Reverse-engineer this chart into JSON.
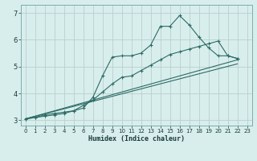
{
  "xlabel": "Humidex (Indice chaleur)",
  "bg_color": "#d8eeed",
  "grid_color": "#b8d0ce",
  "line_color": "#2d6b65",
  "xlim": [
    -0.5,
    23.5
  ],
  "ylim": [
    2.8,
    7.3
  ],
  "xticks": [
    0,
    1,
    2,
    3,
    4,
    5,
    6,
    7,
    8,
    9,
    10,
    11,
    12,
    13,
    14,
    15,
    16,
    17,
    18,
    19,
    20,
    21,
    22,
    23
  ],
  "yticks": [
    3,
    4,
    5,
    6,
    7
  ],
  "series": [
    {
      "x": [
        0,
        1,
        2,
        3,
        4,
        5,
        6,
        7,
        8,
        9,
        10,
        11,
        12,
        13,
        14,
        15,
        16,
        17,
        18,
        19,
        20,
        21,
        22
      ],
      "y": [
        3.05,
        3.1,
        3.2,
        3.25,
        3.3,
        3.35,
        3.45,
        3.85,
        4.65,
        5.35,
        5.4,
        5.4,
        5.5,
        5.8,
        6.5,
        6.5,
        6.9,
        6.55,
        6.1,
        5.7,
        5.4,
        5.4,
        5.3
      ],
      "marker": true
    },
    {
      "x": [
        0,
        1,
        2,
        3,
        4,
        5,
        6,
        7,
        8,
        9,
        10,
        11,
        12,
        13,
        14,
        15,
        16,
        17,
        18,
        19,
        20,
        21,
        22
      ],
      "y": [
        3.05,
        3.1,
        3.15,
        3.2,
        3.25,
        3.35,
        3.55,
        3.75,
        4.05,
        4.35,
        4.6,
        4.65,
        4.85,
        5.05,
        5.25,
        5.45,
        5.55,
        5.65,
        5.75,
        5.85,
        5.95,
        5.4,
        5.3
      ],
      "marker": true
    },
    {
      "x": [
        0,
        22
      ],
      "y": [
        3.05,
        5.25
      ],
      "marker": false
    },
    {
      "x": [
        0,
        22
      ],
      "y": [
        3.05,
        5.1
      ],
      "marker": false
    }
  ]
}
